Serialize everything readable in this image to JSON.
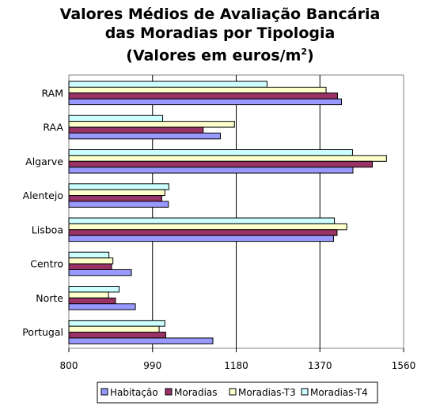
{
  "chart_data": {
    "type": "bar",
    "orientation": "horizontal",
    "title_lines": [
      "Valores Médios de Avaliação Bancária",
      "das Moradias por Tipologia",
      "(Valores em euros/m",
      ")"
    ],
    "title_superscript": "2",
    "categories": [
      "RAM",
      "RAA",
      "Algarve",
      "Alentejo",
      "Lisboa",
      "Centro",
      "Norte",
      "Portugal"
    ],
    "series": [
      {
        "name": "Habitação",
        "color": "#9999FF",
        "values": [
          1419,
          1144,
          1445,
          1026,
          1401,
          942,
          951,
          1127
        ]
      },
      {
        "name": "Moradias",
        "color": "#993366",
        "values": [
          1410,
          1105,
          1489,
          1011,
          1409,
          897,
          906,
          1020
        ]
      },
      {
        "name": "Moradias-T3",
        "color": "#FFFFCC",
        "values": [
          1384,
          1176,
          1521,
          1018,
          1431,
          900,
          890,
          1005
        ]
      },
      {
        "name": "Moradias-T4",
        "color": "#CCFFFF",
        "values": [
          1250,
          1013,
          1444,
          1027,
          1403,
          891,
          914,
          1018
        ]
      }
    ],
    "xlim": [
      800,
      1560
    ],
    "xticks": [
      800,
      990,
      1180,
      1370,
      1560
    ],
    "grid": true,
    "legend": "bottom"
  }
}
